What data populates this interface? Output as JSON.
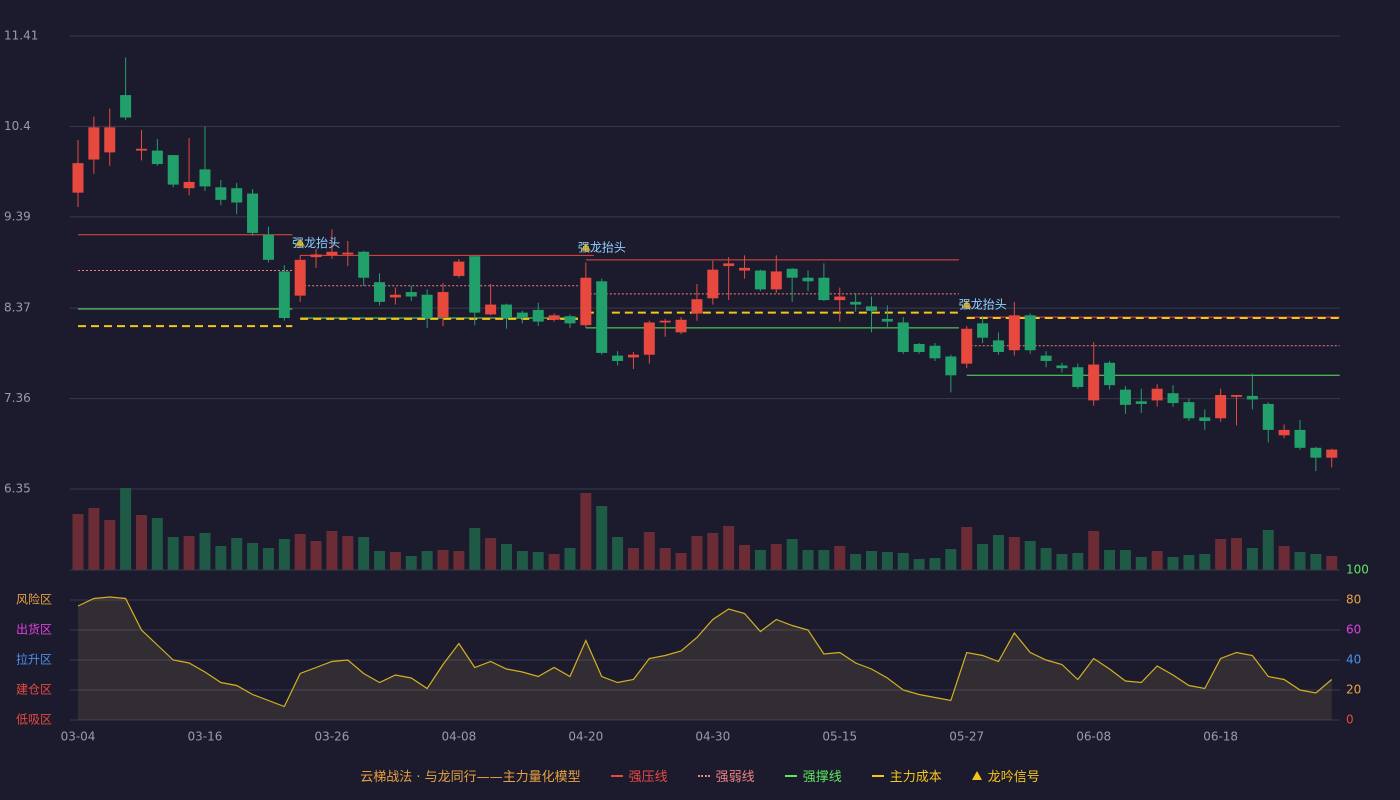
{
  "chart_data": [
    {
      "type": "candlestick",
      "grid": true,
      "up_color": "#e8493f",
      "down_color": "#22a06b",
      "categories": [
        "03-04",
        null,
        null,
        null,
        null,
        null,
        null,
        null,
        "03-16",
        null,
        null,
        null,
        null,
        null,
        null,
        null,
        "03-26",
        null,
        null,
        null,
        null,
        null,
        null,
        null,
        "04-08",
        null,
        null,
        null,
        null,
        null,
        null,
        null,
        "04-20",
        null,
        null,
        null,
        null,
        null,
        null,
        null,
        "04-30",
        null,
        null,
        null,
        null,
        null,
        null,
        null,
        "05-15",
        null,
        null,
        null,
        null,
        null,
        null,
        null,
        "05-27",
        null,
        null,
        null,
        null,
        null,
        null,
        null,
        "06-08",
        null,
        null,
        null,
        null,
        null,
        null,
        null,
        "06-18",
        null,
        null,
        null,
        null,
        null,
        null,
        null
      ],
      "open": [
        9.66,
        10.03,
        10.11,
        10.75,
        10.13,
        10.13,
        10.08,
        9.71,
        9.92,
        9.72,
        9.71,
        9.65,
        9.19,
        8.78,
        8.51,
        8.94,
        8.96,
        8.97,
        9.0,
        8.66,
        8.49,
        8.55,
        8.52,
        8.27,
        8.73,
        8.95,
        8.3,
        8.41,
        8.32,
        8.35,
        8.24,
        8.28,
        8.18,
        8.67,
        7.84,
        7.82,
        7.85,
        8.21,
        8.1,
        8.31,
        8.48,
        8.84,
        8.79,
        8.79,
        8.58,
        8.81,
        8.71,
        8.71,
        8.46,
        8.44,
        8.39,
        8.25,
        8.21,
        7.97,
        7.95,
        7.83,
        7.75,
        8.2,
        8.01,
        7.9,
        8.29,
        7.84,
        7.73,
        7.71,
        7.34,
        7.76,
        7.46,
        7.33,
        7.34,
        7.42,
        7.32,
        7.15,
        7.14,
        7.38,
        7.39,
        7.3,
        6.95,
        7.01,
        6.81,
        6.7
      ],
      "high": [
        10.25,
        10.51,
        10.6,
        11.17,
        10.36,
        10.26,
        10.08,
        10.27,
        10.4,
        9.8,
        9.77,
        9.7,
        9.28,
        8.85,
        8.96,
        9.03,
        9.25,
        9.12,
        9.01,
        8.76,
        8.6,
        8.62,
        8.58,
        8.65,
        8.92,
        8.96,
        8.64,
        8.42,
        8.34,
        8.43,
        8.31,
        8.3,
        8.88,
        8.7,
        7.89,
        7.88,
        8.23,
        8.25,
        8.27,
        8.64,
        8.9,
        8.94,
        8.96,
        8.8,
        8.96,
        8.82,
        8.79,
        8.87,
        8.6,
        8.54,
        8.5,
        8.4,
        8.27,
        7.98,
        7.98,
        7.85,
        8.17,
        8.28,
        8.1,
        8.44,
        8.31,
        7.89,
        7.76,
        7.75,
        7.99,
        7.78,
        7.5,
        7.47,
        7.52,
        7.51,
        7.36,
        7.24,
        7.47,
        7.4,
        7.64,
        7.32,
        7.07,
        7.12,
        6.82,
        6.8
      ],
      "low": [
        9.5,
        9.87,
        9.96,
        10.47,
        10.02,
        9.96,
        9.72,
        9.63,
        9.68,
        9.52,
        9.42,
        9.18,
        8.88,
        8.23,
        8.44,
        8.82,
        8.92,
        8.84,
        8.62,
        8.4,
        8.41,
        8.45,
        8.15,
        8.17,
        8.71,
        8.18,
        8.29,
        8.14,
        8.2,
        8.17,
        8.22,
        8.15,
        8.15,
        7.85,
        7.73,
        7.69,
        7.75,
        8.05,
        8.08,
        8.23,
        8.41,
        8.46,
        8.7,
        8.56,
        8.54,
        8.44,
        8.56,
        8.45,
        8.22,
        8.33,
        8.1,
        8.15,
        7.86,
        7.86,
        7.78,
        7.43,
        7.7,
        7.98,
        7.85,
        7.84,
        7.86,
        7.71,
        7.65,
        7.47,
        7.28,
        7.46,
        7.19,
        7.2,
        7.27,
        7.27,
        7.11,
        7.01,
        7.1,
        7.06,
        7.24,
        6.87,
        6.92,
        6.79,
        6.55,
        6.59
      ],
      "close": [
        9.99,
        10.39,
        10.39,
        10.5,
        10.15,
        9.98,
        9.75,
        9.78,
        9.73,
        9.58,
        9.55,
        9.21,
        8.91,
        8.26,
        8.91,
        8.97,
        9.0,
        8.99,
        8.71,
        8.44,
        8.52,
        8.5,
        8.26,
        8.55,
        8.89,
        8.32,
        8.41,
        8.26,
        8.26,
        8.22,
        8.29,
        8.2,
        8.71,
        7.87,
        7.78,
        7.85,
        8.21,
        8.23,
        8.24,
        8.47,
        8.8,
        8.87,
        8.82,
        8.58,
        8.78,
        8.71,
        8.67,
        8.46,
        8.5,
        8.41,
        8.34,
        8.22,
        7.88,
        7.88,
        7.81,
        7.62,
        8.14,
        8.04,
        7.88,
        8.29,
        7.9,
        7.78,
        7.7,
        7.49,
        7.74,
        7.51,
        7.29,
        7.3,
        7.47,
        7.31,
        7.14,
        7.11,
        7.4,
        7.4,
        7.35,
        7.01,
        7.01,
        6.81,
        6.7,
        6.79
      ],
      "ylim": [
        6.35,
        11.41
      ],
      "yticks": [
        11.41,
        10.4,
        9.39,
        8.37,
        7.36,
        6.35
      ],
      "levels": [
        {
          "name": "强压线",
          "color": "#e8493f",
          "style": "solid",
          "segments": [
            {
              "from": 0,
              "to": 13,
              "value": 9.19
            },
            {
              "from": 14,
              "to": 32,
              "value": 8.96
            },
            {
              "from": 32,
              "to": 55,
              "value": 8.91
            },
            {
              "from": 56,
              "to": 79,
              "value": 8.27
            }
          ]
        },
        {
          "name": "强弱线",
          "color": "#f08080",
          "style": "dotted",
          "segments": [
            {
              "from": 0,
              "to": 13,
              "value": 8.79
            },
            {
              "from": 14,
              "to": 31,
              "value": 8.62
            },
            {
              "from": 32,
              "to": 55,
              "value": 8.53
            },
            {
              "from": 56,
              "to": 79,
              "value": 7.95
            }
          ]
        },
        {
          "name": "强撑线",
          "color": "#5ee65e",
          "style": "solid",
          "segments": [
            {
              "from": 0,
              "to": 13,
              "value": 8.36
            },
            {
              "from": 14,
              "to": 31,
              "value": 8.26
            },
            {
              "from": 32,
              "to": 55,
              "value": 8.15
            },
            {
              "from": 56,
              "to": 79,
              "value": 7.62
            }
          ]
        },
        {
          "name": "主力成本",
          "color": "#f5c518",
          "style": "dashed",
          "segments": [
            {
              "from": 0,
              "to": 13,
              "value": 8.17
            },
            {
              "from": 14,
              "to": 31,
              "value": 8.25
            },
            {
              "from": 32,
              "to": 55,
              "value": 8.32
            },
            {
              "from": 56,
              "to": 79,
              "value": 8.26
            }
          ]
        }
      ],
      "signals": {
        "name": "龙吟信号",
        "color": "#f5c518",
        "points": [
          {
            "label": "强龙抬头",
            "at": 14,
            "value": 8.96
          },
          {
            "label": "强龙抬头",
            "at": 32,
            "value": 8.91
          },
          {
            "label": "强龙抬头",
            "at": 56,
            "value": 8.27
          }
        ]
      }
    },
    {
      "type": "bar",
      "values": [
        56,
        62,
        50,
        82,
        55,
        52,
        33,
        34,
        37,
        24,
        32,
        27,
        22,
        31,
        36,
        29,
        39,
        34,
        33,
        19,
        18,
        14,
        19,
        20,
        19,
        42,
        32,
        26,
        19,
        18,
        16,
        22,
        77,
        64,
        33,
        22,
        38,
        22,
        17,
        34,
        37,
        44,
        25,
        20,
        26,
        31,
        20,
        20,
        24,
        16,
        19,
        18,
        17,
        11,
        12,
        21,
        43,
        26,
        35,
        33,
        29,
        22,
        16,
        17,
        39,
        20,
        20,
        13,
        19,
        13,
        15,
        16,
        31,
        32,
        22,
        40,
        24,
        18,
        16,
        14
      ],
      "up_color": "#6b2c35",
      "down_color": "#1e5a45"
    },
    {
      "type": "line",
      "color": "#d4b020",
      "values": [
        76,
        81,
        82,
        81,
        60,
        50,
        40,
        38,
        32,
        25,
        23,
        17,
        13,
        9,
        31,
        35,
        39,
        40,
        31,
        25,
        30,
        28,
        21,
        37,
        51,
        35,
        39,
        34,
        32,
        29,
        35,
        29,
        53,
        29,
        25,
        27,
        41,
        43,
        46,
        55,
        67,
        74,
        71,
        59,
        67,
        63,
        60,
        44,
        45,
        38,
        34,
        28,
        20,
        17,
        15,
        13,
        45,
        43,
        39,
        58,
        45,
        40,
        37,
        27,
        41,
        34,
        26,
        25,
        36,
        30,
        23,
        21,
        41,
        45,
        43,
        29,
        27,
        20,
        18,
        27
      ],
      "ylim": [
        0,
        100
      ],
      "yticks": [
        100,
        80,
        60,
        40,
        20,
        0
      ],
      "ytick_colors": [
        "#5ee65e",
        "#e8a040",
        "#e040e0",
        "#4a90e8",
        "#e8a040",
        "#e8493f"
      ],
      "zones": [
        {
          "label": "风险区",
          "value": 80,
          "color": "#e8a040"
        },
        {
          "label": "出货区",
          "value": 60,
          "color": "#e040e0"
        },
        {
          "label": "拉升区",
          "value": 40,
          "color": "#4a90e8"
        },
        {
          "label": "建仓区",
          "value": 20,
          "color": "#e8493f"
        },
        {
          "label": "低吸区",
          "value": 0,
          "color": "#e8493f"
        }
      ]
    }
  ],
  "legend_title": "云梯战法 · 与龙同行——主力量化模型"
}
